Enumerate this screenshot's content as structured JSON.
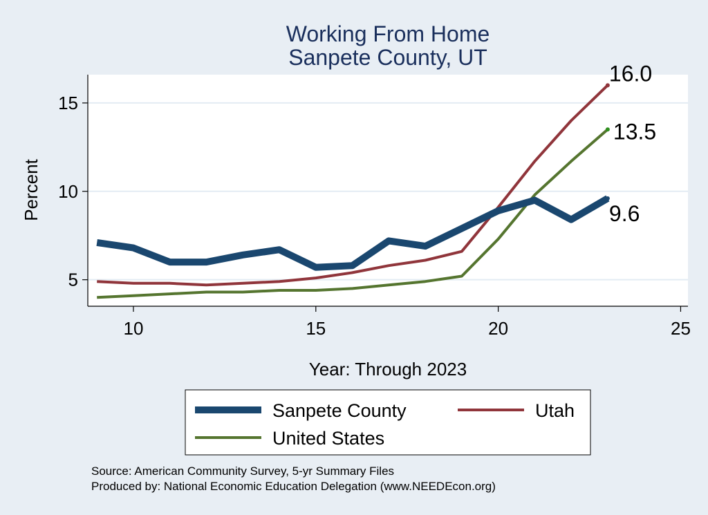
{
  "chart_data": {
    "type": "line",
    "title": [
      "Working From Home",
      "Sanpete County, UT"
    ],
    "xlabel": "Year: Through 2023",
    "ylabel": "Percent",
    "xlim": [
      8.75,
      25.2
    ],
    "ylim": [
      3.5,
      16.6
    ],
    "xticks": [
      10,
      15,
      20,
      25
    ],
    "yticks": [
      5,
      10,
      15
    ],
    "grid": true,
    "x": [
      9,
      10,
      11,
      12,
      13,
      14,
      15,
      16,
      17,
      18,
      19,
      20,
      21,
      22,
      23
    ],
    "series": [
      {
        "name": "Sanpete County",
        "color": "#1a476f",
        "width": 10,
        "values": [
          7.1,
          6.8,
          6.0,
          6.0,
          6.4,
          6.7,
          5.7,
          5.8,
          7.2,
          6.9,
          7.9,
          8.9,
          9.5,
          8.4,
          9.6
        ],
        "end_label": "9.6"
      },
      {
        "name": "Utah",
        "color": "#90353b",
        "width": 4,
        "values": [
          4.9,
          4.8,
          4.8,
          4.7,
          4.8,
          4.9,
          5.1,
          5.4,
          5.8,
          6.1,
          6.6,
          9.1,
          11.7,
          14.0,
          16.0
        ],
        "end_label": "16.0"
      },
      {
        "name": "United States",
        "color": "#55752f",
        "width": 4,
        "values": [
          4.0,
          4.1,
          4.2,
          4.3,
          4.3,
          4.4,
          4.4,
          4.5,
          4.7,
          4.9,
          5.2,
          7.3,
          9.8,
          11.7,
          13.5
        ],
        "end_label": "13.5"
      }
    ],
    "legend": {
      "placement": "bottom",
      "columns": 2
    }
  },
  "source_lines": [
    "Source: American Community Survey, 5-yr Summary Files",
    "Produced by: National Economic Education Delegation (www.NEEDEcon.org)"
  ]
}
